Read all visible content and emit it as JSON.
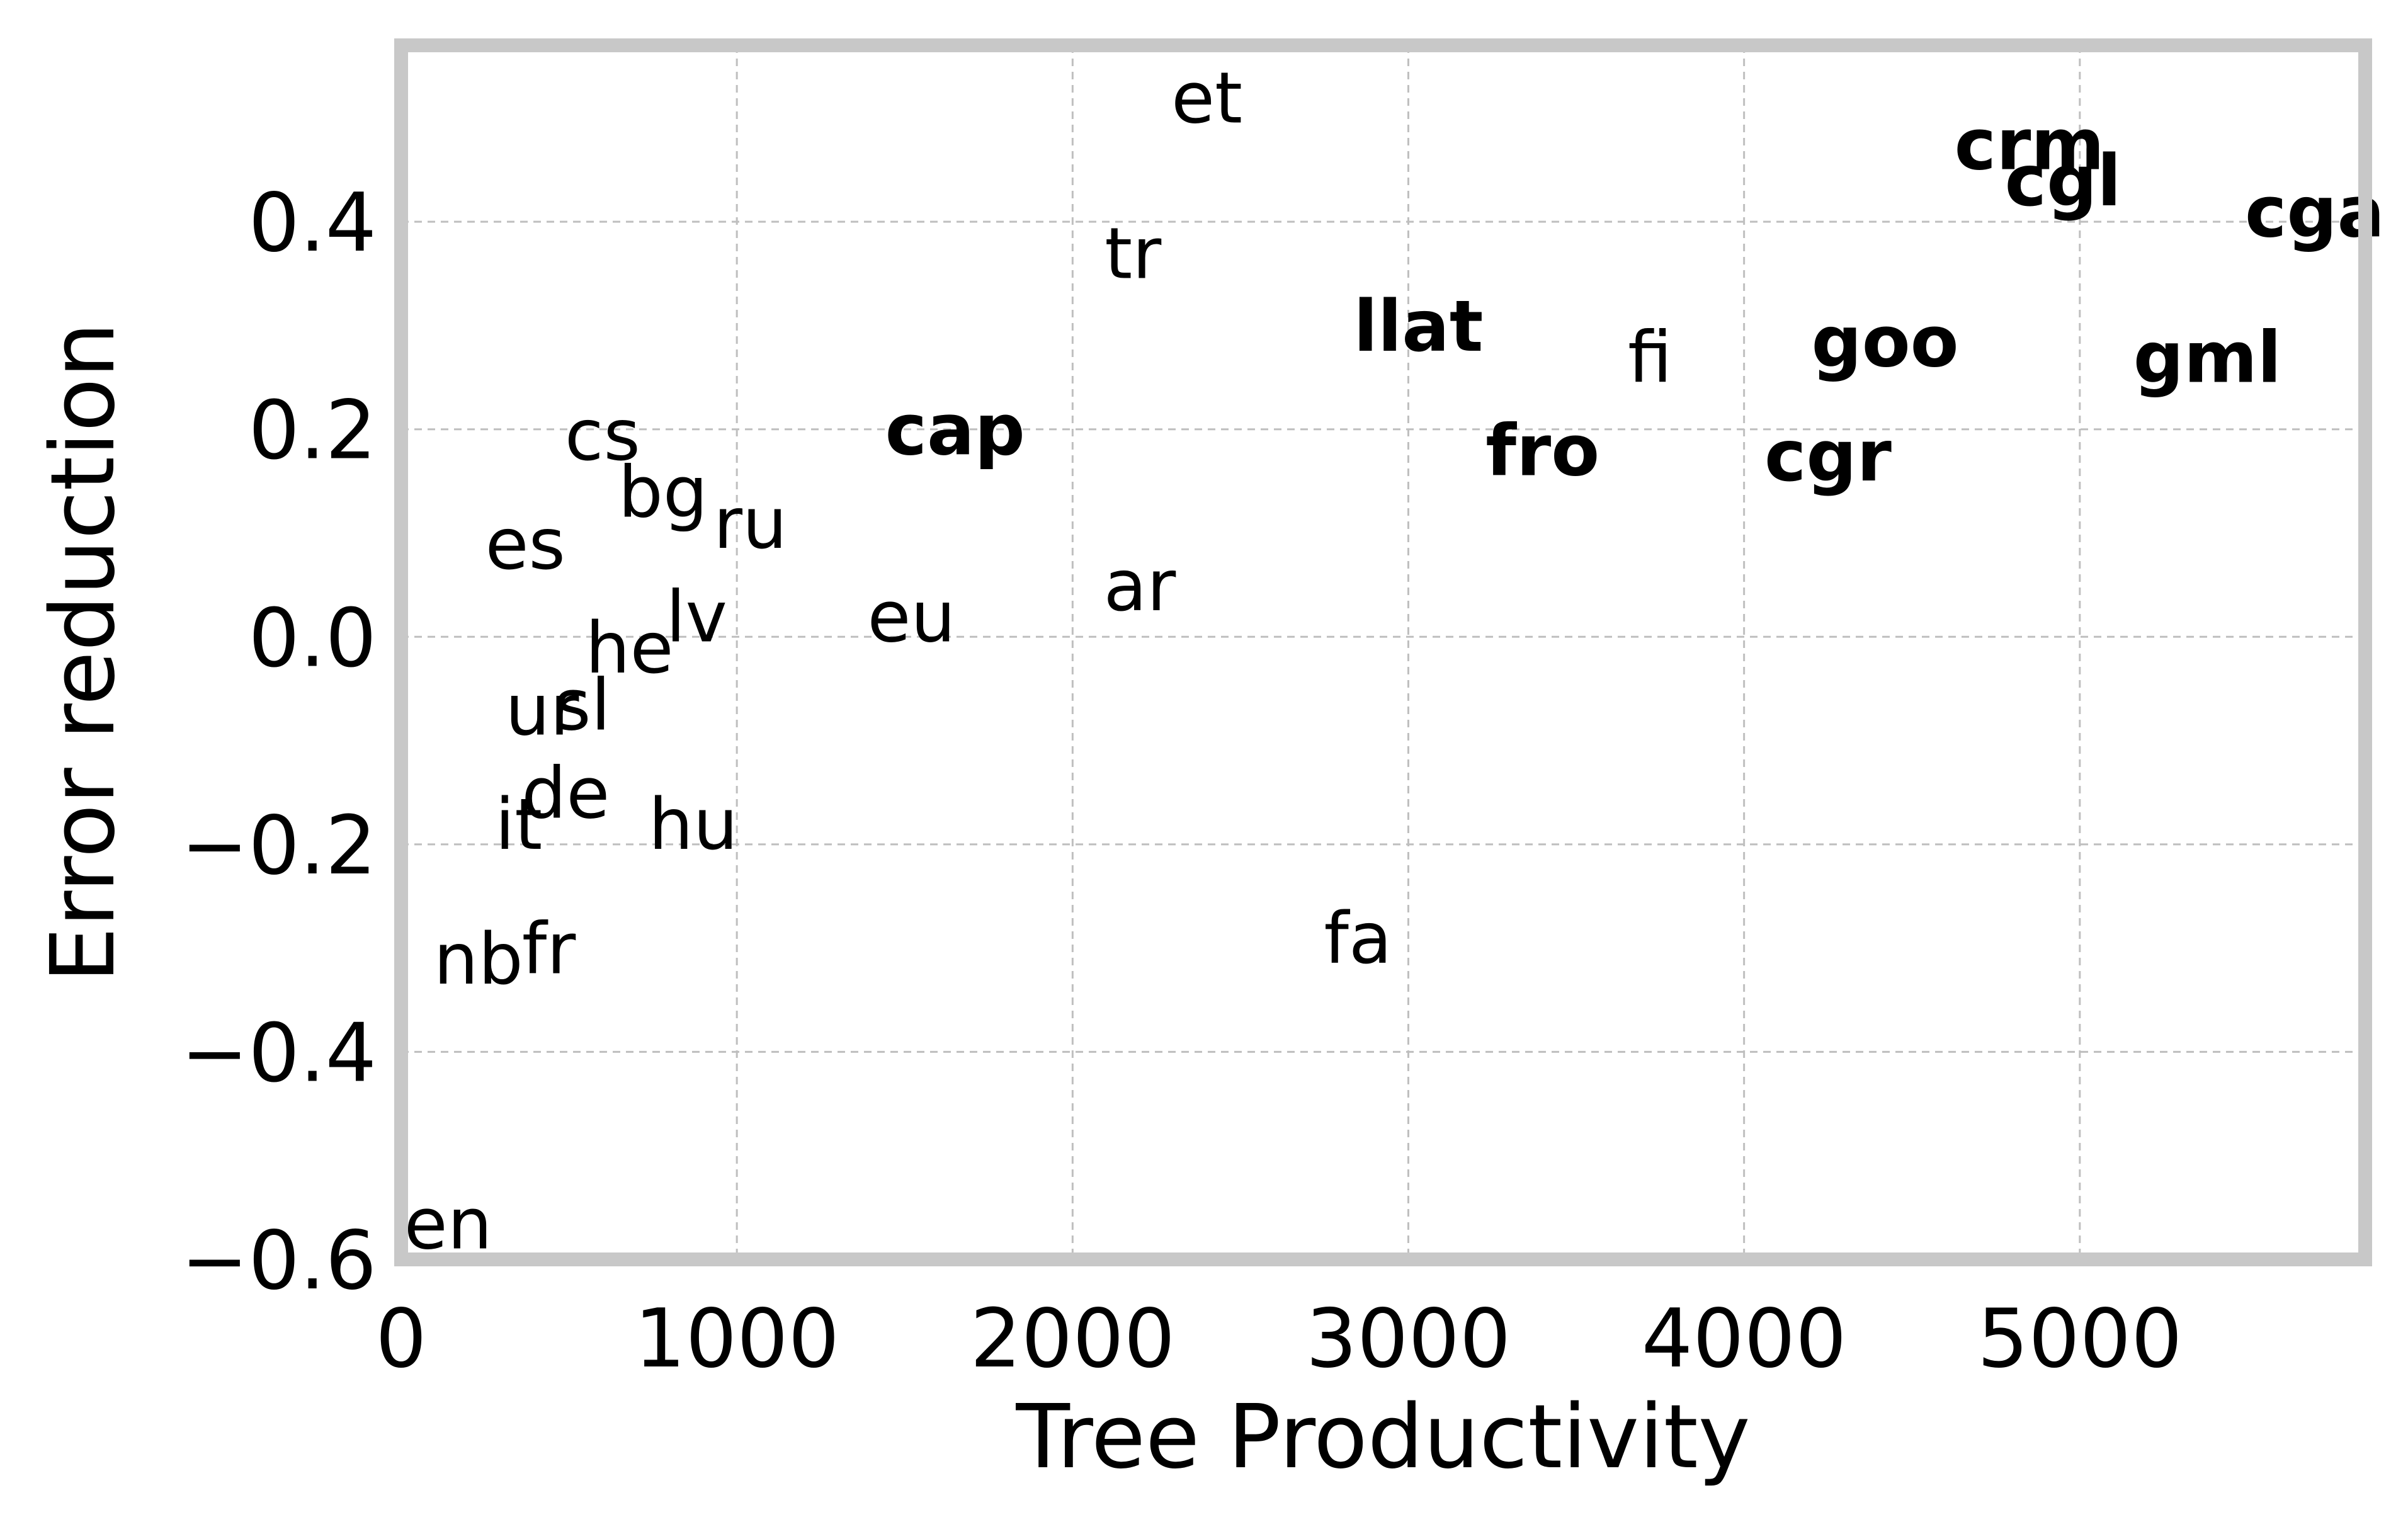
{
  "chart_data": {
    "type": "scatter",
    "xlabel": "Tree Productivity",
    "ylabel": "Error reduction",
    "xlim": [
      0,
      5850
    ],
    "ylim": [
      -0.6,
      0.57
    ],
    "xticks": [
      0,
      1000,
      2000,
      3000,
      4000,
      5000
    ],
    "yticks": [
      -0.6,
      -0.4,
      -0.2,
      0.0,
      0.2,
      0.4
    ],
    "xtick_labels": [
      "0",
      "1000",
      "2000",
      "3000",
      "4000",
      "5000"
    ],
    "ytick_labels": [
      "−0.6",
      "−0.4",
      "−0.2",
      "0.0",
      "0.2",
      "0.4"
    ],
    "grid": true,
    "points": [
      {
        "label": "et",
        "x": 2400,
        "y": 0.52,
        "bold": false
      },
      {
        "label": "crm",
        "x": 4850,
        "y": 0.475,
        "bold": true
      },
      {
        "label": "cgl",
        "x": 4950,
        "y": 0.44,
        "bold": true
      },
      {
        "label": "cga",
        "x": 5700,
        "y": 0.41,
        "bold": true
      },
      {
        "label": "tr",
        "x": 2180,
        "y": 0.37,
        "bold": false
      },
      {
        "label": "llat",
        "x": 3030,
        "y": 0.3,
        "bold": true
      },
      {
        "label": "goo",
        "x": 4420,
        "y": 0.285,
        "bold": true
      },
      {
        "label": "fi",
        "x": 3720,
        "y": 0.27,
        "bold": false
      },
      {
        "label": "gml",
        "x": 5380,
        "y": 0.27,
        "bold": true
      },
      {
        "label": "cs",
        "x": 600,
        "y": 0.195,
        "bold": false
      },
      {
        "label": "cap",
        "x": 1650,
        "y": 0.2,
        "bold": true
      },
      {
        "label": "fro",
        "x": 3400,
        "y": 0.18,
        "bold": true
      },
      {
        "label": "cgr",
        "x": 4250,
        "y": 0.175,
        "bold": true
      },
      {
        "label": "bg",
        "x": 780,
        "y": 0.14,
        "bold": false
      },
      {
        "label": "ru",
        "x": 1040,
        "y": 0.11,
        "bold": false
      },
      {
        "label": "es",
        "x": 370,
        "y": 0.09,
        "bold": false
      },
      {
        "label": "ar",
        "x": 2200,
        "y": 0.05,
        "bold": false
      },
      {
        "label": "lv",
        "x": 880,
        "y": 0.02,
        "bold": false
      },
      {
        "label": "eu",
        "x": 1520,
        "y": 0.02,
        "bold": false
      },
      {
        "label": "he",
        "x": 680,
        "y": -0.01,
        "bold": false
      },
      {
        "label": "sl",
        "x": 540,
        "y": -0.065,
        "bold": false
      },
      {
        "label": "ur",
        "x": 420,
        "y": -0.07,
        "bold": false
      },
      {
        "label": "de",
        "x": 490,
        "y": -0.15,
        "bold": false
      },
      {
        "label": "it",
        "x": 350,
        "y": -0.18,
        "bold": false
      },
      {
        "label": "hu",
        "x": 870,
        "y": -0.18,
        "bold": false
      },
      {
        "label": "fa",
        "x": 2850,
        "y": -0.29,
        "bold": false
      },
      {
        "label": "fr",
        "x": 440,
        "y": -0.3,
        "bold": false
      },
      {
        "label": "nb",
        "x": 230,
        "y": -0.31,
        "bold": false
      },
      {
        "label": "en",
        "x": 140,
        "y": -0.565,
        "bold": false
      }
    ]
  }
}
